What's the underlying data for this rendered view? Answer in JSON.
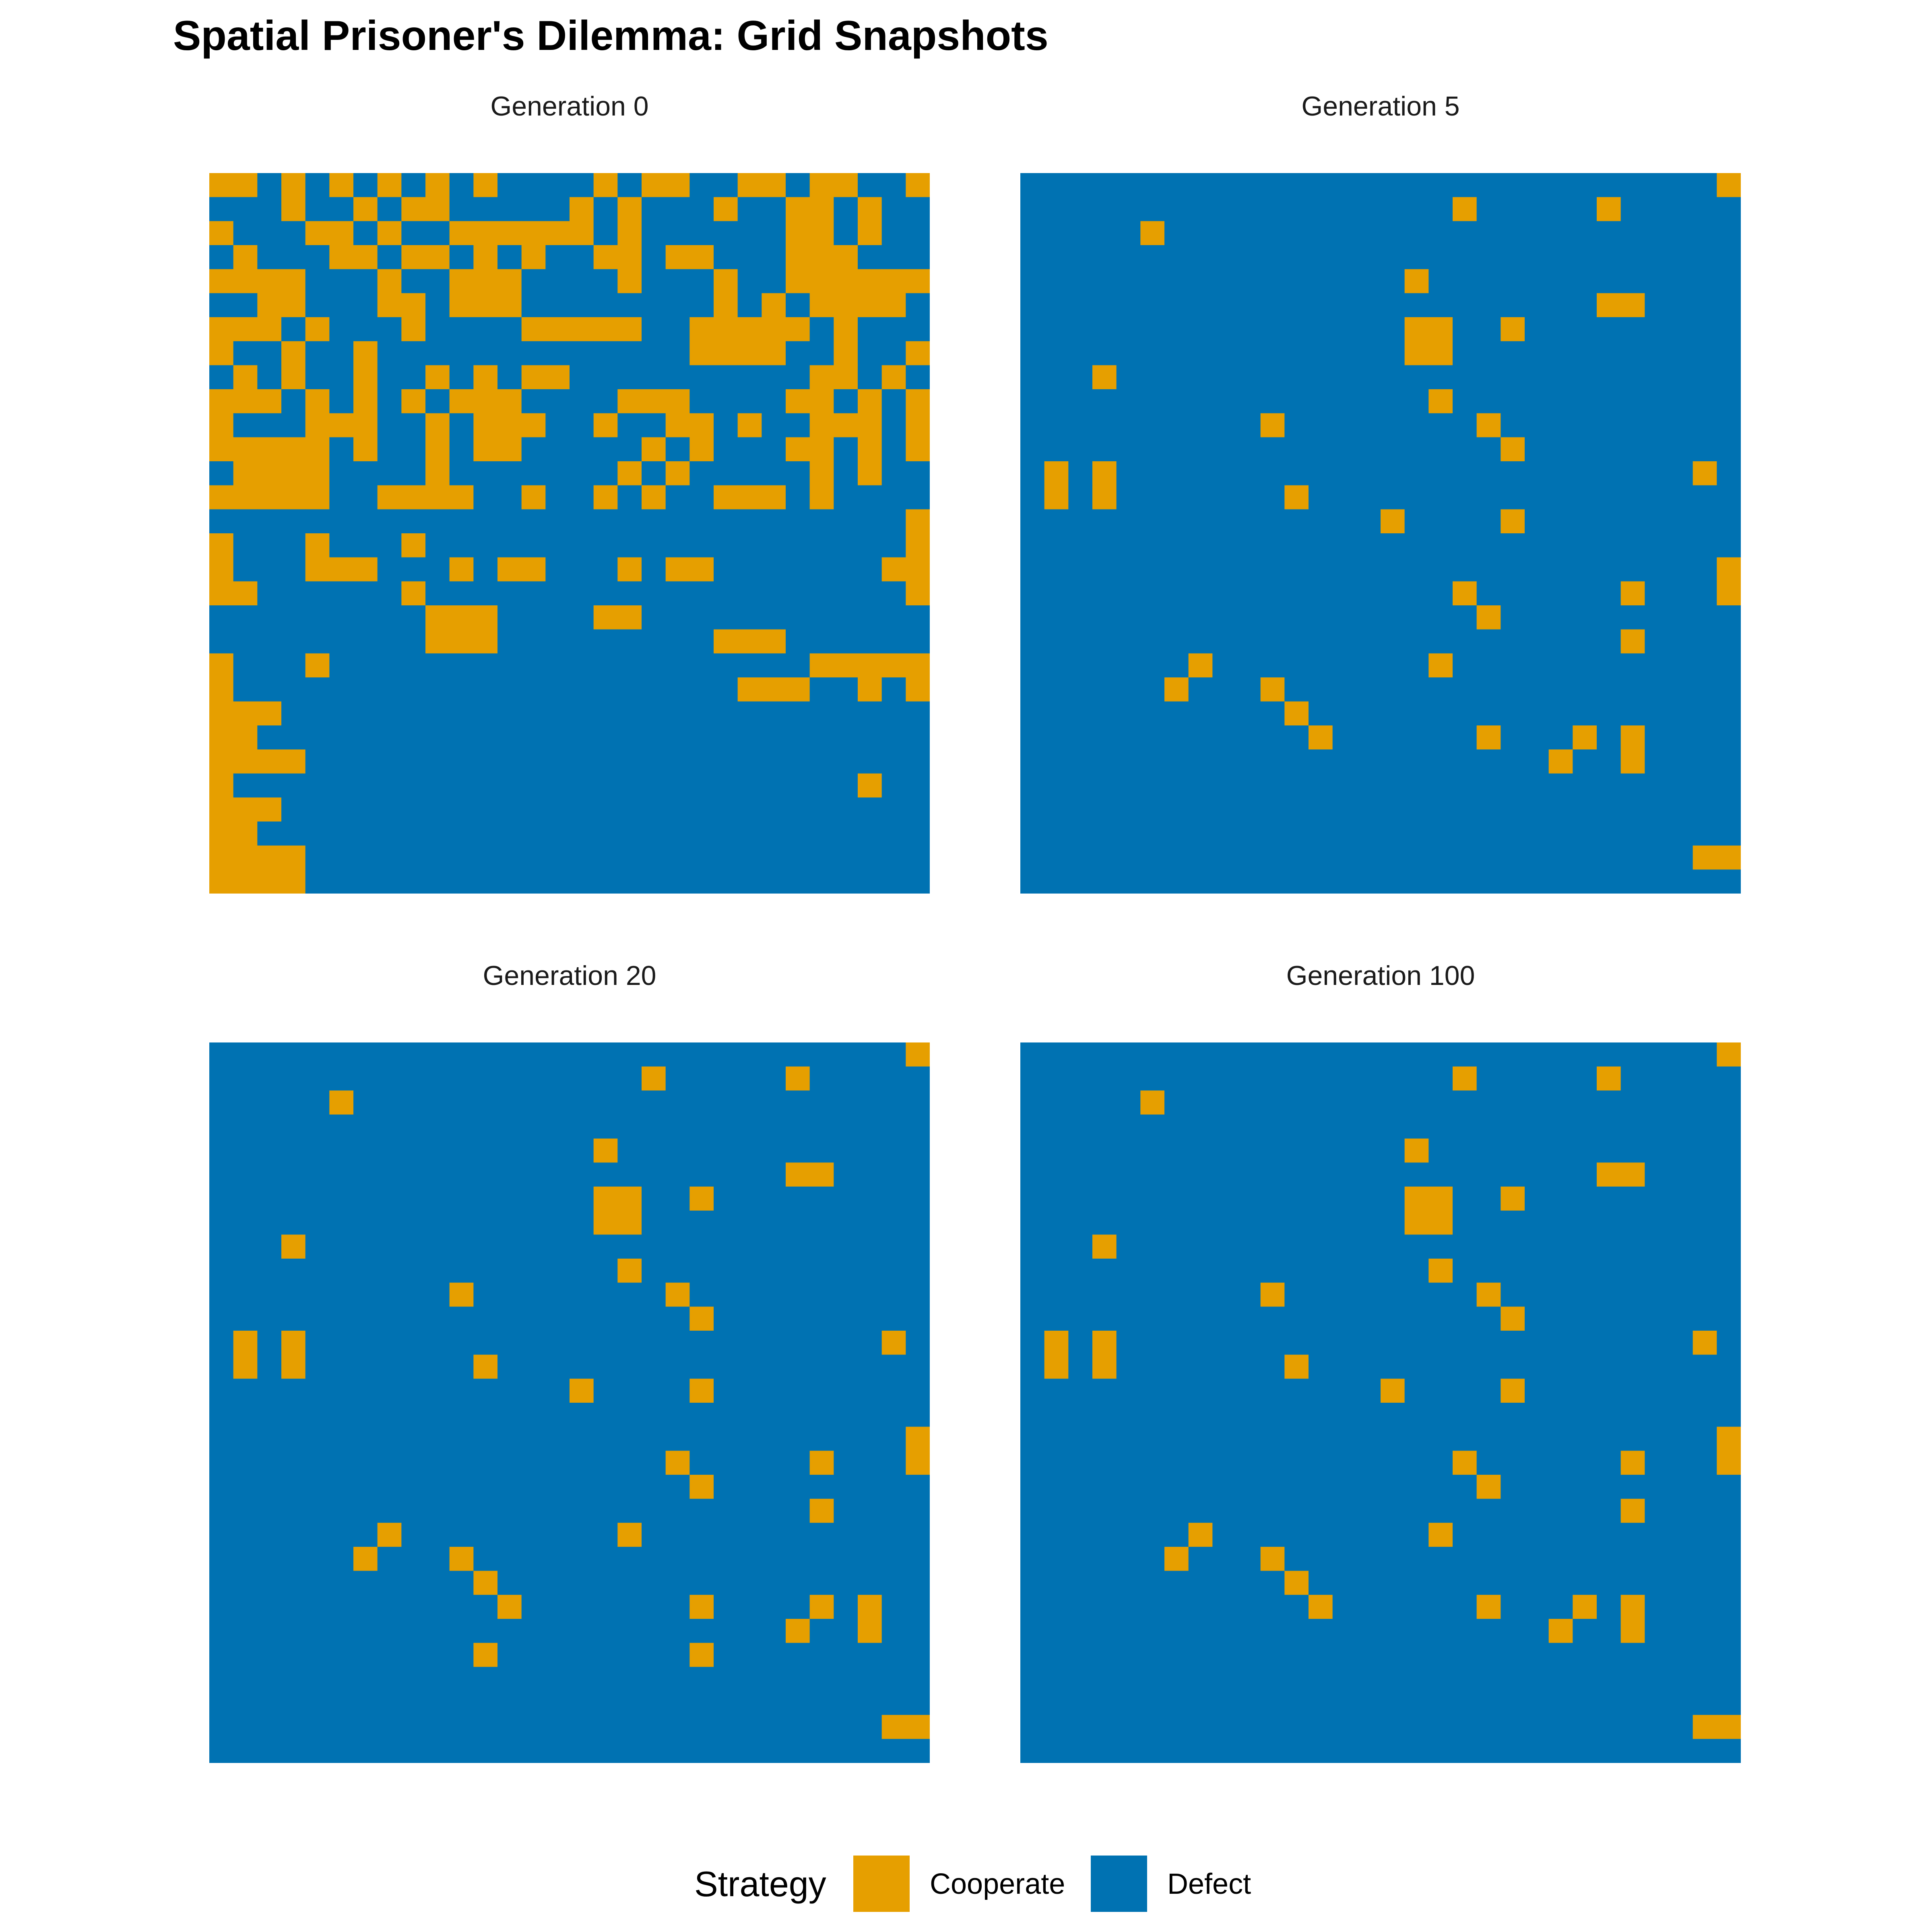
{
  "title": "Spatial Prisoner's Dilemma: Grid Snapshots",
  "colors": {
    "cooperate": "#E69F00",
    "defect": "#0072B2"
  },
  "chart_data": {
    "type": "heatmap",
    "grid_size": 30,
    "row_order": "top-to-bottom",
    "legend": {
      "title": "Strategy",
      "placement": "bottom",
      "entries": [
        {
          "label": "Cooperate",
          "color": "#E69F00",
          "code": "C"
        },
        {
          "label": "Defect",
          "color": "#0072B2",
          "code": "D"
        }
      ]
    },
    "panels": [
      {
        "label": "Generation 0",
        "rows": [
          "CCDCDCDCDCDCDDDDCDCCDDCCDCCDDC",
          "DDDCDDCDCCDDDDDCDCDDDCDDCCDCDD",
          "CDDDCCDCDDCCCCCCDCDDDDDDCCDCDD",
          "DCDDDCCDCCDCDCDDCCDCCDDDCCCDDD",
          "CCCCDDDCDDCCCDDDDCDDDCDDCCCCCC",
          "DDCCDDDCCDCCCDDDDDDDDCDCDCCCCD",
          "CCCDCDDDCDDDDCCCCCDDCCCCCDCDDD",
          "CDDCDDCDDDDDDDDDDDDDCCCCDDCDDC",
          "DCDCDDCDDCDCDCCDDDDDDDDDDCCDCD",
          "CCCDCDCDCDCCCDDDDCCCDDDDCCDCDC",
          "CDDDCCCDDCDCCCDDCDDCCDCDDCCCDC",
          "CCCCCDCDDCDCCDDDDDCDCDDDCCDCDC",
          "DCCCCDDDDCDDDDDDDCDCDDDDDCDCDD",
          "CCCCCDDCCCCDDCDDCDCDDCCCDCDDDD",
          "DDDDDDDDDDDDDDDDDDDDDDDDDDDDDC",
          "CDDDCDDDCDDDDDDDDDDDDDDDDDDDDC",
          "CDDDCCCDDDCDCCDDDCDCCDDDDDDDCC",
          "CCDDDDDDCDDDDDDDDDDDDDDDDDDDDC",
          "DDDDDDDDDCCCDDDDCCDDDDDDDDDDDD",
          "DDDDDDDDDCCCDDDDDDDDDCCCDDDDDD",
          "CDDDCDDDDDDDDDDDDDDDDDDDDCCCCC",
          "CDDDDDDDDDDDDDDDDDDDDDCCCDDCDC",
          "CCCDDDDDDDDDDDDDDDDDDDDDDDDDDD",
          "CCDDDDDDDDDDDDDDDDDDDDDDDDDDDD",
          "CCCCDDDDDDDDDDDDDDDDDDDDDDDDDD",
          "CDDDDDDDDDDDDDDDDDDDDDDDDDDCDD",
          "CCCDDDDDDDDDDDDDDDDDDDDDDDDDDD",
          "CCDDDDDDDDDDDDDDDDDDDDDDDDDDDD",
          "CCCCDDDDDDDDDDDDDDDDDDDDDDDDDD",
          "CCCCDDDDDDDDDDDDDDDDDDDDDDDDDD"
        ]
      },
      {
        "label": "Generation 5",
        "rows": [
          "DDDDDDDDDDDDDDDDDDDDDDDDDDDDDC",
          "DDDDDDDDDDDDDDDDDDCDDDDDCDDDDD",
          "DDDDDCDDDDDDDDDDDDDDDDDDDDDDDD",
          "DDDDDDDDDDDDDDDDDDDDDDDDDDDDDD",
          "DDDDDDDDDDDDDDDDCDDDDDDDDDDDDD",
          "DDDDDDDDDDDDDDDDDDDDDDDDCCDDDD",
          "DDDDDDDDDDDDDDDDCCDDCDDDDDDDDD",
          "DDDDDDDDDDDDDDDDCCDDDDDDDDDDDD",
          "DDDCDDDDDDDDDDDDDDDDDDDDDDDDDD",
          "DDDDDDDDDDDDDDDDDCDDDDDDDDDDDD",
          "DDDDDDDDDDCDDDDDDDDCDDDDDDDDDD",
          "DDDDDDDDDDDDDDDDDDDDCDDDDDDDDD",
          "DCDCDDDDDDDDDDDDDDDDDDDDDDDDCD",
          "DCDCDDDDDDDCDDDDDDDDDDDDDDDDDD",
          "DDDDDDDDDDDDDDDCDDDDCDDDDDDDDD",
          "DDDDDDDDDDDDDDDDDDDDDDDDDDDDDD",
          "DDDDDDDDDDDDDDDDDDDDDDDDDDDDDC",
          "DDDDDDDDDDDDDDDDDDCDDDDDDCDDDC",
          "DDDDDDDDDDDDDDDDDDDCDDDDDDDDDD",
          "DDDDDDDDDDDDDDDDDDDDDDDDDCDDDD",
          "DDDDDDDCDDDDDDDDDCDDDDDDDDDDDD",
          "DDDDDDCDDDCDDDDDDDDDDDDDDDDDDD",
          "DDDDDDDDDDDCDDDDDDDDDDDDDDDDDD",
          "DDDDDDDDDDDDCDDDDDDCDDDCDCDDDD",
          "DDDDDDDDDDDDDDDDDDDDDDCDDCDDDD",
          "DDDDDDDDDDDDDDDDDDDDDDDDDDDDDD",
          "DDDDDDDDDDDDDDDDDDDDDDDDDDDDDD",
          "DDDDDDDDDDDDDDDDDDDDDDDDDDDDDD",
          "DDDDDDDDDDDDDDDDDDDDDDDDDDDDCC",
          "DDDDDDDDDDDDDDDDDDDDDDDDDDDDDD"
        ]
      },
      {
        "label": "Generation 20",
        "rows": [
          "DDDDDDDDDDDDDDDDDDDDDDDDDDDDDC",
          "DDDDDDDDDDDDDDDDDDCDDDDDCDDDDD",
          "DDDDDCDDDDDDDDDDDDDDDDDDDDDDDD",
          "DDDDDDDDDDDDDDDDDDDDDDDDDDDDDD",
          "DDDDDDDDDDDDDDDDCDDDDDDDDDDDDD",
          "DDDDDDDDDDDDDDDDDDDDDDDDCCDDDD",
          "DDDDDDDDDDDDDDDDCCDDCDDDDDDDDD",
          "DDDDDDDDDDDDDDDDCCDDDDDDDDDDDD",
          "DDDCDDDDDDDDDDDDDDDDDDDDDDDDDD",
          "DDDDDDDDDDDDDDDDDCDDDDDDDDDDDD",
          "DDDDDDDDDDCDDDDDDDDCDDDDDDDDDD",
          "DDDDDDDDDDDDDDDDDDDDCDDDDDDDDD",
          "DCDCDDDDDDDDDDDDDDDDDDDDDDDDCD",
          "DCDCDDDDDDDCDDDDDDDDDDDDDDDDDD",
          "DDDDDDDDDDDDDDDCDDDDCDDDDDDDDD",
          "DDDDDDDDDDDDDDDDDDDDDDDDDDDDDD",
          "DDDDDDDDDDDDDDDDDDDDDDDDDDDDDC",
          "DDDDDDDDDDDDDDDDDDDCDDDDDCDDDC",
          "DDDDDDDDDDDDDDDDDDDDCDDDDDDDDD",
          "DDDDDDDDDDDDDDDDDDDDDDDDDCDDDD",
          "DDDDDDDCDDDDDDDDDCDDDDDDDDDDDD",
          "DDDDDDCDDDCDDDDDDDDDDDDDDDDDDD",
          "DDDDDDDDDDDCDDDDDDDDDDDDDDDDDD",
          "DDDDDDDDDDDDCDDDDDDDCDDDDCDCDD",
          "DDDDDDDDDDDDDDDDDDDDDDDDCDDCDD",
          "DDDDDDDDDDDCDDDDDDDDCDDDDDDDDD",
          "DDDDDDDDDDDDDDDDDDDDDDDDDDDDDD",
          "DDDDDDDDDDDDDDDDDDDDDDDDDDDDDD",
          "DDDDDDDDDDDDDDDDDDDDDDDDDDDDCC",
          "DDDDDDDDDDDDDDDDDDDDDDDDDDDDDD"
        ]
      },
      {
        "label": "Generation 100",
        "rows": [
          "DDDDDDDDDDDDDDDDDDDDDDDDDDDDDC",
          "DDDDDDDDDDDDDDDDDDCDDDDDCDDDDD",
          "DDDDDCDDDDDDDDDDDDDDDDDDDDDDDD",
          "DDDDDDDDDDDDDDDDDDDDDDDDDDDDDD",
          "DDDDDDDDDDDDDDDDCDDDDDDDDDDDDD",
          "DDDDDDDDDDDDDDDDDDDDDDDDCCDDDD",
          "DDDDDDDDDDDDDDDDCCDDCDDDDDDDDD",
          "DDDDDDDDDDDDDDDDCCDDDDDDDDDDDD",
          "DDDCDDDDDDDDDDDDDDDDDDDDDDDDDD",
          "DDDDDDDDDDDDDDDDDCDDDDDDDDDDDD",
          "DDDDDDDDDDCDDDDDDDDCDDDDDDDDDD",
          "DDDDDDDDDDDDDDDDDDDDCDDDDDDDDD",
          "DCDCDDDDDDDDDDDDDDDDDDDDDDDDCD",
          "DCDCDDDDDDDCDDDDDDDDDDDDDDDDDD",
          "DDDDDDDDDDDDDDDCDDDDCDDDDDDDDD",
          "DDDDDDDDDDDDDDDDDDDDDDDDDDDDDD",
          "DDDDDDDDDDDDDDDDDDDDDDDDDDDDDC",
          "DDDDDDDDDDDDDDDDDDCDDDDDDCDDDC",
          "DDDDDDDDDDDDDDDDDDDCDDDDDDDDDD",
          "DDDDDDDDDDDDDDDDDDDDDDDDDCDDDD",
          "DDDDDDDCDDDDDDDDDCDDDDDDDDDDDD",
          "DDDDDDCDDDCDDDDDDDDDDDDDDDDDDD",
          "DDDDDDDDDDDCDDDDDDDDDDDDDDDDDD",
          "DDDDDDDDDDDDCDDDDDDCDDDCDCDDDD",
          "DDDDDDDDDDDDDDDDDDDDDDCDDCDDDD",
          "DDDDDDDDDDDDDDDDDDDDDDDDDDDDDD",
          "DDDDDDDDDDDDDDDDDDDDDDDDDDDDDD",
          "DDDDDDDDDDDDDDDDDDDDDDDDDDDDDD",
          "DDDDDDDDDDDDDDDDDDDDDDDDDDDDCC",
          "DDDDDDDDDDDDDDDDDDDDDDDDDDDDDD"
        ]
      }
    ]
  }
}
